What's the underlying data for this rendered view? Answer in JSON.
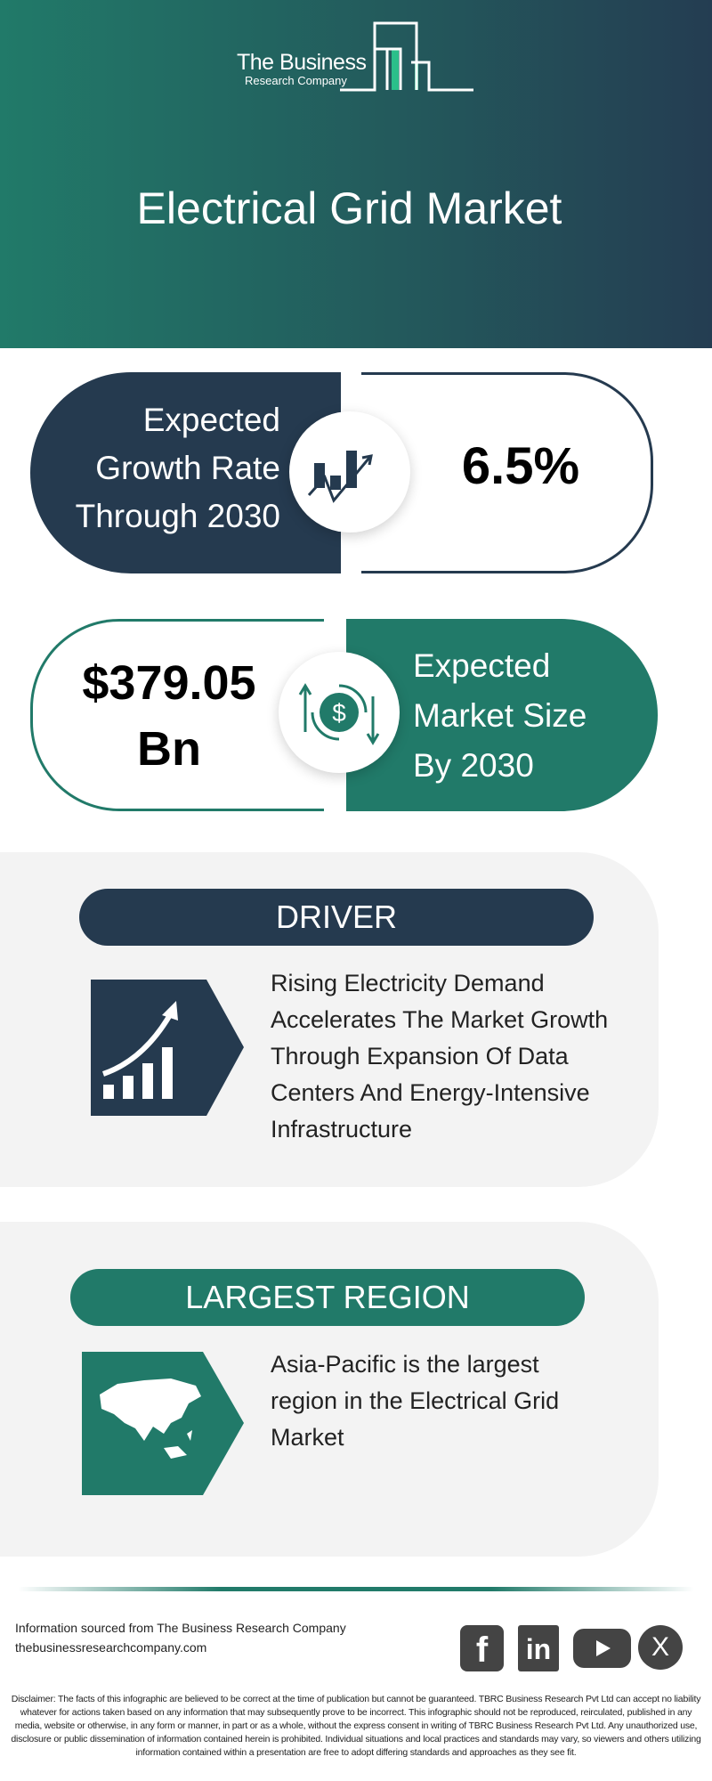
{
  "header": {
    "logo_line1": "The Business",
    "logo_line2": "Research Company",
    "title": "Electrical Grid Market"
  },
  "growth": {
    "label_lines": [
      "Expected",
      "Growth Rate",
      "Through 2030"
    ],
    "value": "6.5%",
    "icon": "growth-chart-icon"
  },
  "market": {
    "value_lines": [
      "$379.05",
      "Bn"
    ],
    "label_lines": [
      "Expected",
      "Market Size",
      "By 2030"
    ],
    "icon": "dollar-exchange-icon"
  },
  "driver": {
    "heading": "DRIVER",
    "lines": [
      "Rising Electricity Demand",
      "Accelerates The Market Growth",
      "Through Expansion Of Data",
      "Centers And Energy-Intensive",
      "Infrastructure"
    ],
    "icon": "rising-bar-chart-icon"
  },
  "region": {
    "heading": "LARGEST REGION",
    "lines": [
      "Asia-Pacific is the largest",
      "region in the Electrical Grid",
      "Market"
    ],
    "icon": "asia-map-icon"
  },
  "footer": {
    "source": "Information sourced from The Business Research Company",
    "website": "thebusinessresearchcompany.com",
    "socials": [
      "facebook",
      "linkedin",
      "youtube",
      "x"
    ],
    "disclaimer": "Disclaimer: The facts of this infographic are believed to be correct at the time of publication but cannot be guaranteed. TBRC Business Research Pvt Ltd can accept no liability whatever for actions taken based on any information that may subsequently prove to be incorrect. This infographic should not be reproduced, reirculated, published in any media, website or otherwise, in any form or manner, in part or as a whole, without the express consent in writing of TBRC Business Research Pvt Ltd. Any unauthorized use, disclosure or public dissemination of information contained herein is prohibited. Individual situations and local practices and standards may vary, so viewers and others utilizing information contained within a presentation are free to adopt differing standards and approaches as they see fit."
  },
  "colors": {
    "navy": "#253a4f",
    "teal": "#217a69",
    "section_bg": "#f3f3f3",
    "logo_accent": "#2bbf8a"
  }
}
